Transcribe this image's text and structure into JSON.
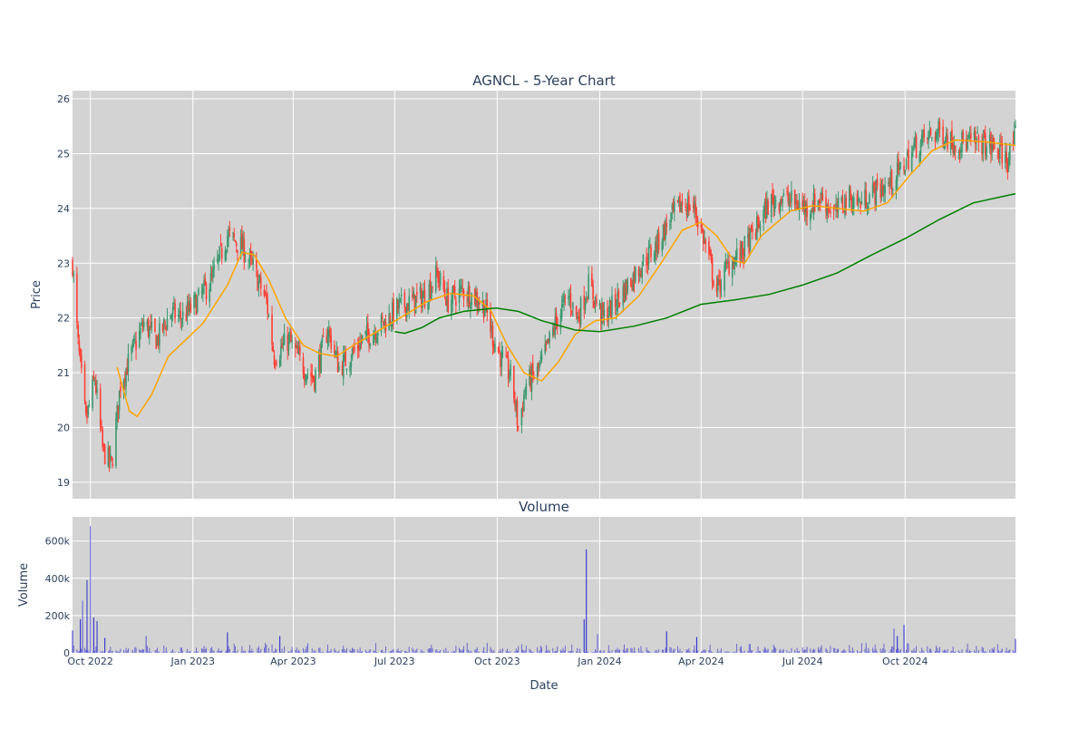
{
  "chart_data": [
    {
      "type": "candlestick",
      "title": "AGNCL - 5-Year Chart",
      "xlabel": "",
      "ylabel": "Price",
      "ylim": [
        18.7,
        26.15
      ],
      "yticks": [
        19,
        20,
        21,
        22,
        23,
        24,
        25,
        26
      ],
      "xticks": [
        {
          "date": "2022-10-01",
          "label": "Oct 2022"
        },
        {
          "date": "2023-01-01",
          "label": "Jan 2023"
        },
        {
          "date": "2023-04-01",
          "label": "Apr 2023"
        },
        {
          "date": "2023-07-01",
          "label": "Jul 2023"
        },
        {
          "date": "2023-10-01",
          "label": "Oct 2023"
        },
        {
          "date": "2024-01-01",
          "label": "Jan 2024"
        },
        {
          "date": "2024-04-01",
          "label": "Apr 2024"
        },
        {
          "date": "2024-07-01",
          "label": "Jul 2024"
        },
        {
          "date": "2024-10-01",
          "label": "Oct 2024"
        }
      ],
      "date_range": [
        "2022-09-15",
        "2025-01-08"
      ],
      "colors": {
        "up": "#3d9970",
        "down": "#ff4136",
        "ma_short": "#ffa500",
        "ma_long": "#008000",
        "background": "#d3d3d3",
        "grid": "#ffffff"
      },
      "close_path": [
        [
          "2022-09-15",
          23.0
        ],
        [
          "2022-09-20",
          21.5
        ],
        [
          "2022-09-27",
          20.1
        ],
        [
          "2022-10-05",
          20.9
        ],
        [
          "2022-10-12",
          19.6
        ],
        [
          "2022-10-20",
          19.3
        ],
        [
          "2022-10-28",
          20.8
        ],
        [
          "2022-11-08",
          21.4
        ],
        [
          "2022-11-18",
          21.9
        ],
        [
          "2022-11-30",
          21.6
        ],
        [
          "2022-12-12",
          22.1
        ],
        [
          "2022-12-22",
          22.0
        ],
        [
          "2023-01-05",
          22.3
        ],
        [
          "2023-01-18",
          22.7
        ],
        [
          "2023-02-01",
          23.5
        ],
        [
          "2023-02-14",
          23.3
        ],
        [
          "2023-02-24",
          22.9
        ],
        [
          "2023-03-08",
          22.3
        ],
        [
          "2023-03-15",
          21.3
        ],
        [
          "2023-03-28",
          21.6
        ],
        [
          "2023-04-10",
          21.1
        ],
        [
          "2023-04-20",
          20.9
        ],
        [
          "2023-05-02",
          21.8
        ],
        [
          "2023-05-12",
          21.1
        ],
        [
          "2023-05-22",
          21.3
        ],
        [
          "2023-06-02",
          21.6
        ],
        [
          "2023-06-14",
          21.8
        ],
        [
          "2023-06-26",
          22.0
        ],
        [
          "2023-07-05",
          22.2
        ],
        [
          "2023-07-17",
          22.3
        ],
        [
          "2023-07-28",
          22.4
        ],
        [
          "2023-08-08",
          22.8
        ],
        [
          "2023-08-18",
          22.3
        ],
        [
          "2023-08-30",
          22.5
        ],
        [
          "2023-09-10",
          22.4
        ],
        [
          "2023-09-20",
          22.2
        ],
        [
          "2023-09-28",
          21.6
        ],
        [
          "2023-10-06",
          21.2
        ],
        [
          "2023-10-14",
          20.9
        ],
        [
          "2023-10-20",
          20.0
        ],
        [
          "2023-10-27",
          20.8
        ],
        [
          "2023-11-06",
          21.0
        ],
        [
          "2023-11-14",
          21.4
        ],
        [
          "2023-11-24",
          22.0
        ],
        [
          "2023-12-04",
          22.4
        ],
        [
          "2023-12-12",
          22.0
        ],
        [
          "2023-12-22",
          22.6
        ],
        [
          "2024-01-04",
          22.0
        ],
        [
          "2024-01-16",
          22.3
        ],
        [
          "2024-01-26",
          22.6
        ],
        [
          "2024-02-08",
          23.0
        ],
        [
          "2024-02-20",
          23.3
        ],
        [
          "2024-03-04",
          23.8
        ],
        [
          "2024-03-15",
          24.1
        ],
        [
          "2024-03-26",
          24.0
        ],
        [
          "2024-04-04",
          23.4
        ],
        [
          "2024-04-15",
          22.5
        ],
        [
          "2024-04-26",
          23.0
        ],
        [
          "2024-05-08",
          23.2
        ],
        [
          "2024-05-20",
          23.6
        ],
        [
          "2024-06-01",
          24.1
        ],
        [
          "2024-06-12",
          24.2
        ],
        [
          "2024-06-24",
          24.1
        ],
        [
          "2024-07-05",
          24.0
        ],
        [
          "2024-07-18",
          24.2
        ],
        [
          "2024-07-30",
          23.9
        ],
        [
          "2024-08-10",
          24.2
        ],
        [
          "2024-08-22",
          24.1
        ],
        [
          "2024-09-03",
          24.3
        ],
        [
          "2024-09-15",
          24.4
        ],
        [
          "2024-09-27",
          24.7
        ],
        [
          "2024-10-09",
          25.1
        ],
        [
          "2024-10-21",
          25.3
        ],
        [
          "2024-11-02",
          25.4
        ],
        [
          "2024-11-14",
          25.2
        ],
        [
          "2024-11-26",
          25.2
        ],
        [
          "2024-12-08",
          25.2
        ],
        [
          "2024-12-20",
          25.1
        ],
        [
          "2025-01-01",
          24.9
        ],
        [
          "2025-01-08",
          25.3
        ]
      ],
      "series": [
        {
          "type": "line",
          "color": "#ffa500",
          "points": [
            [
              "2022-10-25",
              21.1
            ],
            [
              "2022-11-05",
              20.3
            ],
            [
              "2022-11-12",
              20.2
            ],
            [
              "2022-11-25",
              20.6
            ],
            [
              "2022-12-10",
              21.3
            ],
            [
              "2023-01-10",
              21.9
            ],
            [
              "2023-02-01",
              22.6
            ],
            [
              "2023-02-14",
              23.2
            ],
            [
              "2023-02-25",
              23.15
            ],
            [
              "2023-03-10",
              22.7
            ],
            [
              "2023-03-25",
              22.0
            ],
            [
              "2023-04-10",
              21.5
            ],
            [
              "2023-04-25",
              21.35
            ],
            [
              "2023-05-10",
              21.3
            ],
            [
              "2023-05-25",
              21.5
            ],
            [
              "2023-06-15",
              21.75
            ],
            [
              "2023-07-10",
              22.05
            ],
            [
              "2023-07-30",
              22.3
            ],
            [
              "2023-08-20",
              22.45
            ],
            [
              "2023-09-10",
              22.4
            ],
            [
              "2023-09-25",
              22.15
            ],
            [
              "2023-10-10",
              21.5
            ],
            [
              "2023-10-25",
              21.0
            ],
            [
              "2023-11-10",
              20.85
            ],
            [
              "2023-11-25",
              21.2
            ],
            [
              "2023-12-10",
              21.7
            ],
            [
              "2023-12-28",
              21.95
            ],
            [
              "2024-01-15",
              22.0
            ],
            [
              "2024-02-05",
              22.4
            ],
            [
              "2024-02-25",
              23.0
            ],
            [
              "2024-03-15",
              23.6
            ],
            [
              "2024-04-01",
              23.75
            ],
            [
              "2024-04-15",
              23.5
            ],
            [
              "2024-04-30",
              23.05
            ],
            [
              "2024-05-10",
              23.0
            ],
            [
              "2024-05-25",
              23.5
            ],
            [
              "2024-06-20",
              23.95
            ],
            [
              "2024-07-10",
              24.05
            ],
            [
              "2024-08-01",
              24.0
            ],
            [
              "2024-08-25",
              23.95
            ],
            [
              "2024-09-15",
              24.1
            ],
            [
              "2024-10-05",
              24.6
            ],
            [
              "2024-10-25",
              25.05
            ],
            [
              "2024-11-15",
              25.25
            ],
            [
              "2024-12-10",
              25.22
            ],
            [
              "2025-01-08",
              25.15
            ]
          ]
        },
        {
          "type": "line",
          "color": "#008000",
          "points": [
            [
              "2023-07-01",
              21.75
            ],
            [
              "2023-07-10",
              21.72
            ],
            [
              "2023-07-25",
              21.82
            ],
            [
              "2023-08-10",
              22.0
            ],
            [
              "2023-09-01",
              22.12
            ],
            [
              "2023-09-30",
              22.18
            ],
            [
              "2023-10-20",
              22.12
            ],
            [
              "2023-11-10",
              21.95
            ],
            [
              "2023-12-10",
              21.78
            ],
            [
              "2024-01-01",
              21.75
            ],
            [
              "2024-02-01",
              21.85
            ],
            [
              "2024-03-01",
              22.0
            ],
            [
              "2024-04-01",
              22.25
            ],
            [
              "2024-05-01",
              22.33
            ],
            [
              "2024-06-01",
              22.43
            ],
            [
              "2024-07-01",
              22.6
            ],
            [
              "2024-08-01",
              22.82
            ],
            [
              "2024-09-01",
              23.15
            ],
            [
              "2024-10-01",
              23.45
            ],
            [
              "2024-11-01",
              23.8
            ],
            [
              "2024-12-01",
              24.1
            ],
            [
              "2025-01-08",
              24.27
            ]
          ]
        }
      ]
    },
    {
      "type": "bar",
      "title": "Volume",
      "xlabel": "Date",
      "ylabel": "Volume",
      "ylim": [
        0,
        730000
      ],
      "yticks": [
        {
          "value": 0,
          "label": "0"
        },
        {
          "value": 200000,
          "label": "200k"
        },
        {
          "value": 400000,
          "label": "400k"
        },
        {
          "value": 600000,
          "label": "600k"
        }
      ],
      "color": "#0000cd",
      "spikes": [
        [
          "2022-09-15",
          120000
        ],
        [
          "2022-09-22",
          180000
        ],
        [
          "2022-09-24",
          280000
        ],
        [
          "2022-09-28",
          390000
        ],
        [
          "2022-10-01",
          680000
        ],
        [
          "2022-10-04",
          190000
        ],
        [
          "2022-10-07",
          170000
        ],
        [
          "2022-10-14",
          80000
        ],
        [
          "2022-11-20",
          90000
        ],
        [
          "2023-02-01",
          110000
        ],
        [
          "2023-03-20",
          90000
        ],
        [
          "2023-12-18",
          180000
        ],
        [
          "2023-12-20",
          555000
        ],
        [
          "2023-12-30",
          100000
        ],
        [
          "2024-03-01",
          115000
        ],
        [
          "2024-03-28",
          85000
        ],
        [
          "2024-09-21",
          130000
        ],
        [
          "2024-09-30",
          150000
        ],
        [
          "2024-09-24",
          90000
        ],
        [
          "2025-01-08",
          75000
        ]
      ]
    }
  ]
}
